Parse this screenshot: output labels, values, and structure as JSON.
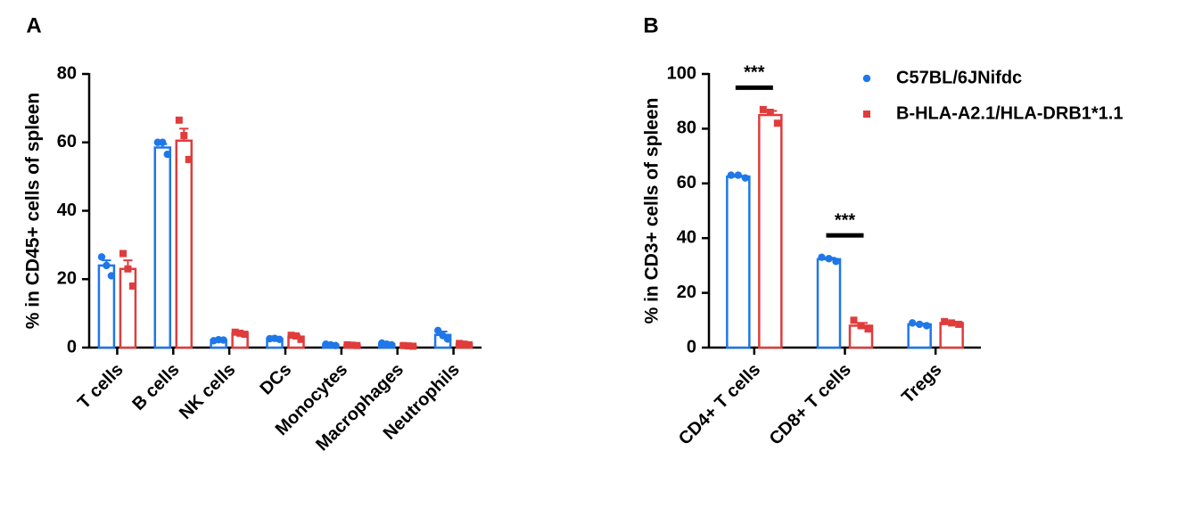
{
  "chart_data": [
    {
      "type": "bar",
      "panel": "A",
      "ylabel": "% in CD45+ cells of spleen",
      "categories": [
        "T cells",
        "B cells",
        "NK cells",
        "DCs",
        "Monocytes",
        "Macrophages",
        "Neutrophils"
      ],
      "ylim": [
        0,
        80
      ],
      "yticks": [
        0,
        20,
        40,
        60,
        80
      ],
      "series": [
        {
          "color": "#1f77e8",
          "marker": "circle",
          "values": [
            24,
            58.5,
            2.2,
            2.5,
            0.8,
            1,
            3.7
          ],
          "errors": [
            1.5,
            1,
            0.2,
            0.2,
            0.2,
            0.2,
            1
          ],
          "points": [
            [
              26.5,
              24,
              21
            ],
            [
              60,
              60,
              56.5
            ],
            [
              2,
              2.3,
              2.2
            ],
            [
              2.6,
              2.7,
              2.4
            ],
            [
              1,
              0.8,
              0.6
            ],
            [
              1.3,
              1,
              0.8
            ],
            [
              5,
              3.5,
              2.5
            ]
          ]
        },
        {
          "color": "#e03c3c",
          "marker": "square",
          "values": [
            23,
            60.5,
            4.2,
            3.2,
            0.7,
            0.5,
            1
          ],
          "errors": [
            2.5,
            3.5,
            0.3,
            0.4,
            0.1,
            0.1,
            0.2
          ],
          "points": [
            [
              27.5,
              23,
              18
            ],
            [
              66.5,
              62,
              55
            ],
            [
              4.5,
              4.2,
              3.9
            ],
            [
              3.6,
              3.4,
              2.4
            ],
            [
              0.8,
              0.7,
              0.6
            ],
            [
              0.6,
              0.5,
              0.4
            ],
            [
              1.2,
              1,
              0.8
            ]
          ]
        }
      ]
    },
    {
      "type": "bar",
      "panel": "B",
      "ylabel": "% in CD3+ cells of spleen",
      "categories": [
        "CD4+ T cells",
        "CD8+ T cells",
        "Tregs"
      ],
      "ylim": [
        0,
        100
      ],
      "yticks": [
        0,
        20,
        40,
        60,
        80,
        100
      ],
      "annotations": [
        "***",
        "***",
        null
      ],
      "legend": "upper right",
      "series": [
        {
          "name": "C57BL/6JNifdc",
          "color": "#1f77e8",
          "marker": "circle",
          "values": [
            62.5,
            32.3,
            8.5
          ],
          "errors": [
            0.3,
            0.5,
            0.3
          ],
          "points": [
            [
              63,
              63,
              62
            ],
            [
              33,
              32.5,
              31.5
            ],
            [
              9,
              8.5,
              8
            ]
          ]
        },
        {
          "name": "B-HLA-A2.1/HLA-DRB1*1.1",
          "color": "#e03c3c",
          "marker": "square",
          "values": [
            85,
            8,
            9
          ],
          "errors": [
            1.5,
            1,
            0.3
          ],
          "points": [
            [
              87,
              86,
              82
            ],
            [
              10,
              8,
              6.8
            ],
            [
              9.5,
              9,
              8.5
            ]
          ]
        }
      ]
    }
  ]
}
